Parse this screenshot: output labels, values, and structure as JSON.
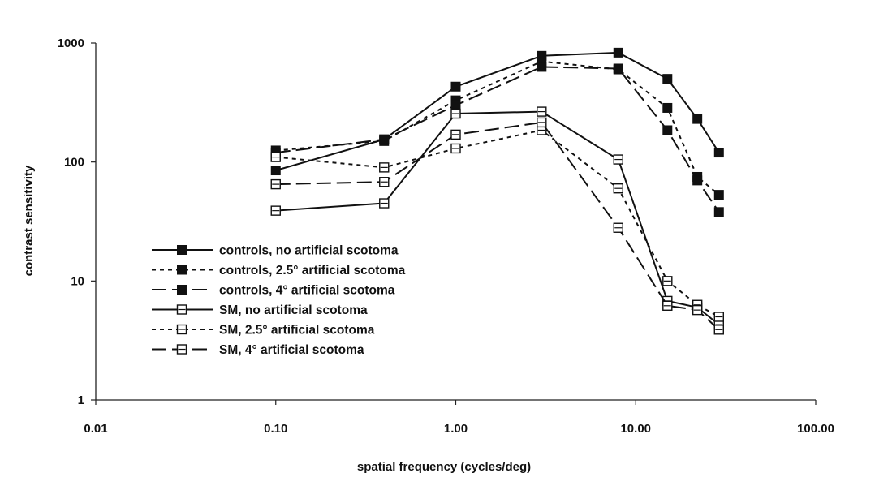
{
  "chart_data": {
    "type": "line",
    "xlabel": "spatial frequency (cycles/deg)",
    "ylabel": "contrast sensitivity",
    "x_scale": "log",
    "y_scale": "log",
    "xlim": [
      0.01,
      100
    ],
    "ylim": [
      1,
      1000
    ],
    "x_ticks": [
      "0.01",
      "0.10",
      "1.00",
      "10.00",
      "100.00"
    ],
    "y_ticks": [
      "1",
      "10",
      "100",
      "1000"
    ],
    "grid": false,
    "legend_position": "lower-left",
    "series": [
      {
        "name": "controls, no artificial scotoma",
        "marker": "filled-square",
        "dash": "solid",
        "color": "#111111",
        "x": [
          0.1,
          0.4,
          1.0,
          3.0,
          8.0,
          15.0,
          22.0,
          29.0
        ],
        "y": [
          85,
          155,
          430,
          780,
          830,
          500,
          230,
          120
        ]
      },
      {
        "name": "controls, 2.5° artificial scotoma",
        "marker": "filled-square",
        "dash": "short",
        "color": "#111111",
        "x": [
          0.1,
          0.4,
          1.0,
          3.0,
          8.0,
          15.0,
          22.0,
          29.0
        ],
        "y": [
          125,
          150,
          330,
          700,
          600,
          285,
          75,
          53
        ]
      },
      {
        "name": "controls, 4° artificial scotoma",
        "marker": "filled-square",
        "dash": "long",
        "color": "#111111",
        "x": [
          0.1,
          0.4,
          1.0,
          3.0,
          8.0,
          15.0,
          22.0,
          29.0
        ],
        "y": [
          120,
          155,
          300,
          630,
          610,
          185,
          70,
          38
        ]
      },
      {
        "name": "SM, no artificial scotoma",
        "marker": "open-square",
        "dash": "solid",
        "color": "#111111",
        "x": [
          0.1,
          0.4,
          1.0,
          3.0,
          8.0,
          15.0,
          22.0,
          29.0
        ],
        "y": [
          39,
          45,
          255,
          265,
          105,
          6.8,
          6.0,
          4.3
        ]
      },
      {
        "name": "SM, 2.5° artificial scotoma",
        "marker": "open-square",
        "dash": "short",
        "color": "#111111",
        "x": [
          0.1,
          0.4,
          1.0,
          3.0,
          8.0,
          15.0,
          22.0,
          29.0
        ],
        "y": [
          110,
          90,
          130,
          185,
          60,
          10,
          6.3,
          5.0
        ]
      },
      {
        "name": "SM, 4° artificial scotoma",
        "marker": "open-square",
        "dash": "long",
        "color": "#111111",
        "x": [
          0.1,
          0.4,
          1.0,
          3.0,
          8.0,
          15.0,
          22.0,
          29.0
        ],
        "y": [
          65,
          68,
          170,
          215,
          28,
          6.2,
          5.7,
          3.9
        ]
      }
    ]
  }
}
